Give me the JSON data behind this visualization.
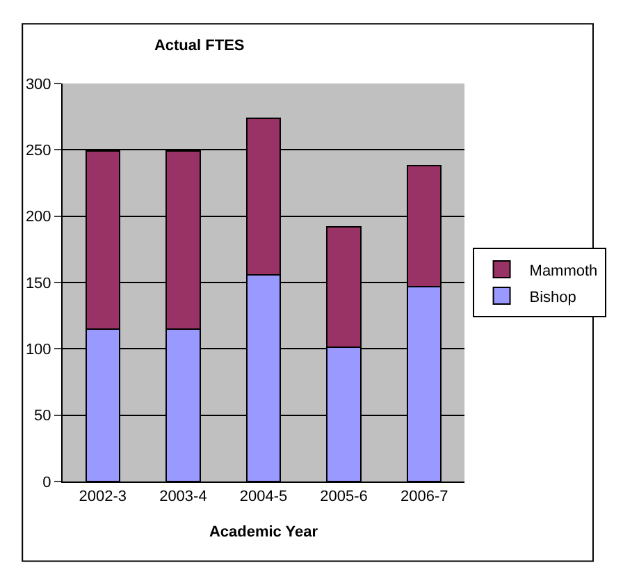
{
  "chart_data": {
    "type": "bar",
    "title": "Actual FTES",
    "xlabel": "Academic Year",
    "stacked": true,
    "categories": [
      "2002-3",
      "2003-4",
      "2004-5",
      "2005-6",
      "2006-7"
    ],
    "series": [
      {
        "name": "Bishop",
        "color": "#9999ff",
        "values": [
          115,
          115,
          156,
          101,
          147
        ]
      },
      {
        "name": "Mammoth",
        "color": "#993366",
        "values": [
          134,
          134,
          118,
          91,
          91
        ]
      }
    ],
    "ylim": [
      0,
      300
    ],
    "yticks": [
      0,
      50,
      100,
      150,
      200,
      250,
      300
    ],
    "grid": "y",
    "legend": "right"
  }
}
